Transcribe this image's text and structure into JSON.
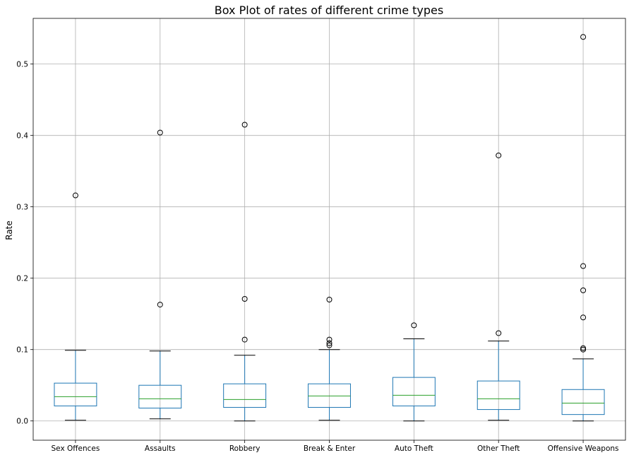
{
  "chart_data": {
    "type": "box",
    "title": "Box Plot of rates of different crime types",
    "xlabel": "",
    "ylabel": "Rate",
    "ylim": [
      -0.027,
      0.564
    ],
    "yticks": [
      0.0,
      0.1,
      0.2,
      0.3,
      0.4,
      0.5
    ],
    "ytick_labels": [
      "0.0",
      "0.1",
      "0.2",
      "0.3",
      "0.4",
      "0.5"
    ],
    "grid": true,
    "colors": {
      "box": "#1f77b4",
      "median": "#2ca02c",
      "whisker": "#1f77b4",
      "cap": "#000000",
      "grid": "#b0b0b0",
      "axis": "#000000"
    },
    "categories": [
      "Sex Offences",
      "Assaults",
      "Robbery",
      "Break & Enter",
      "Auto Theft",
      "Other Theft",
      "Offensive Weapons"
    ],
    "boxes": [
      {
        "whisker_low": 0.001,
        "q1": 0.021,
        "median": 0.034,
        "q3": 0.053,
        "whisker_high": 0.099,
        "outliers": [
          0.316
        ]
      },
      {
        "whisker_low": 0.003,
        "q1": 0.018,
        "median": 0.031,
        "q3": 0.05,
        "whisker_high": 0.098,
        "outliers": [
          0.163,
          0.404
        ]
      },
      {
        "whisker_low": 0.0,
        "q1": 0.019,
        "median": 0.03,
        "q3": 0.052,
        "whisker_high": 0.092,
        "outliers": [
          0.114,
          0.171,
          0.415
        ]
      },
      {
        "whisker_low": 0.001,
        "q1": 0.019,
        "median": 0.035,
        "q3": 0.052,
        "whisker_high": 0.1,
        "outliers": [
          0.106,
          0.109,
          0.114,
          0.17
        ]
      },
      {
        "whisker_low": 0.0,
        "q1": 0.021,
        "median": 0.036,
        "q3": 0.061,
        "whisker_high": 0.115,
        "outliers": [
          0.134
        ]
      },
      {
        "whisker_low": 0.001,
        "q1": 0.016,
        "median": 0.031,
        "q3": 0.056,
        "whisker_high": 0.112,
        "outliers": [
          0.123,
          0.372
        ]
      },
      {
        "whisker_low": 0.0,
        "q1": 0.009,
        "median": 0.025,
        "q3": 0.044,
        "whisker_high": 0.087,
        "outliers": [
          0.1,
          0.102,
          0.145,
          0.183,
          0.217,
          0.538
        ]
      }
    ]
  }
}
